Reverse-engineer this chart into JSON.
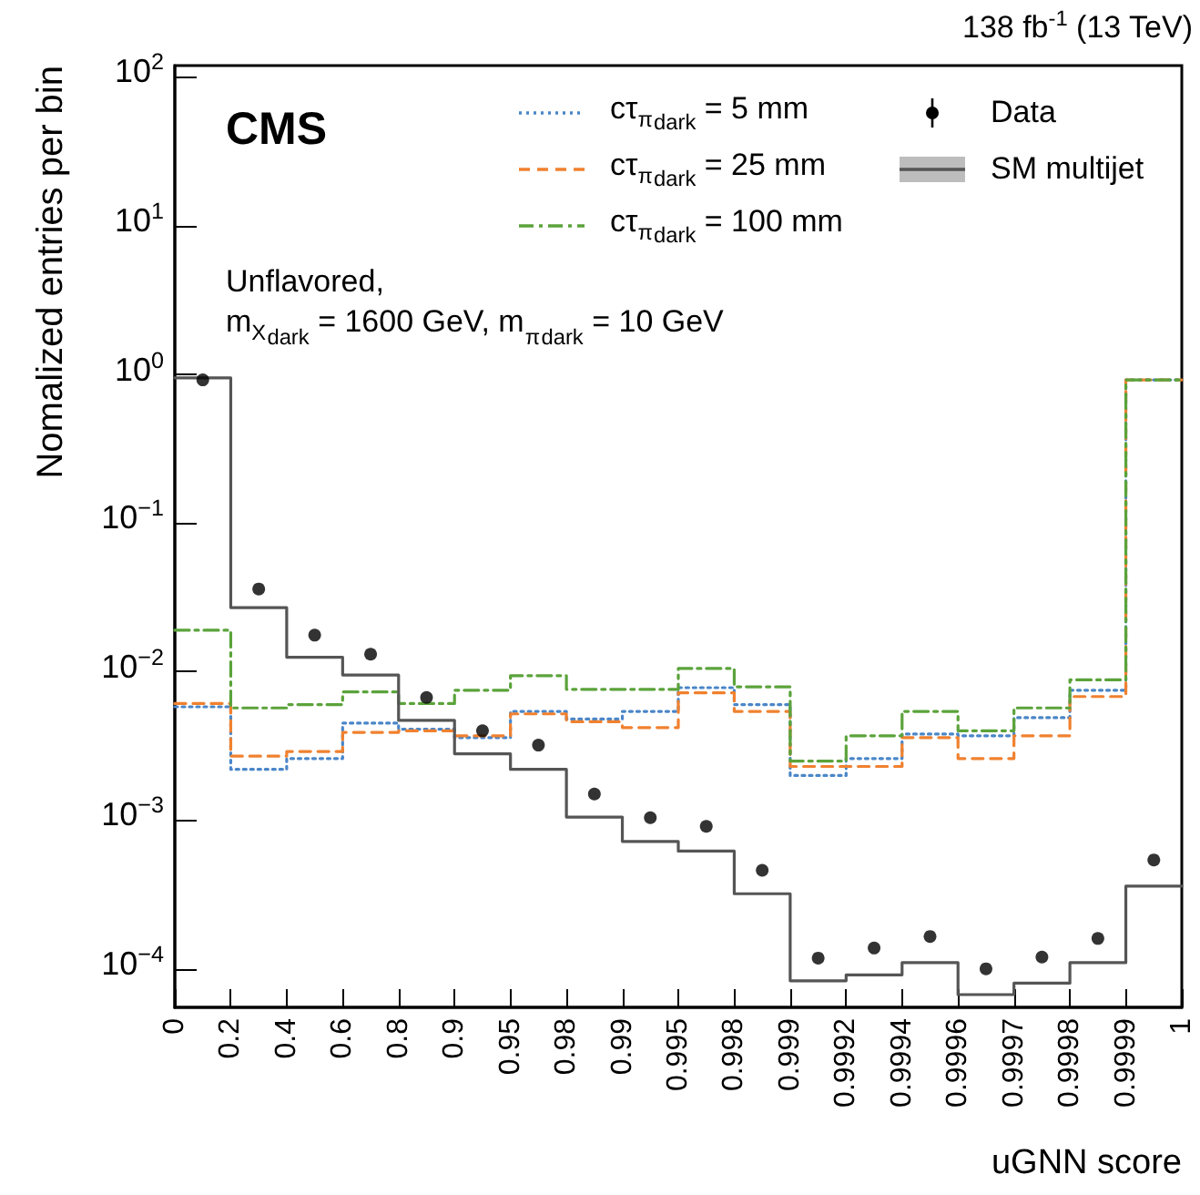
{
  "chart_data": {
    "type": "step",
    "xlabel": "uGNN score",
    "ylabel": "Nomalized entries per bin",
    "annotations": [
      "CMS",
      "138 fb$^{-1}$ (13 TeV)",
      "Unflavored,",
      "m$_{X}$$_{dark}$ = 1600 GeV, m$_{π}$$_{dark}$ = 10 GeV"
    ],
    "categories": [
      "0",
      null,
      "0.2",
      null,
      "0.4",
      null,
      "0.6",
      null,
      "0.8",
      null,
      "0.9",
      null,
      "0.95",
      null,
      "0.98",
      null,
      "0.99",
      null,
      "0.995",
      null,
      "0.998",
      null,
      "0.999",
      null,
      "0.9992",
      null,
      "0.9994",
      null,
      "0.9996",
      null,
      "0.9997",
      null,
      "0.9998",
      null,
      "0.9999",
      null,
      "1"
    ],
    "log": "y",
    "ylim": [
      5.5e-05,
      120
    ],
    "yticks": [
      {
        "value": 0.0001,
        "label": "10$^{−4}$"
      },
      {
        "value": 0.001,
        "label": "10$^{−3}$"
      },
      {
        "value": 0.01,
        "label": "10$^{−2}$"
      },
      {
        "value": 0.1,
        "label": "10$^{−1}$"
      },
      {
        "value": 1,
        "label": "10$^{0}$"
      },
      {
        "value": 10,
        "label": "10$^{1}$"
      },
      {
        "value": 100,
        "label": "10$^{2}$"
      }
    ],
    "legend": "top right",
    "grid": false,
    "series": [
      {
        "name": "cτ$_{π}$$_{dark}$ = 5 mm",
        "color": "#4a86c8",
        "line_style": "dotted",
        "values": [
          0.0058,
          0.0058,
          0.0022,
          0.0022,
          0.0026,
          0.0026,
          0.0045,
          0.0045,
          0.0041,
          0.0041,
          0.0036,
          0.0036,
          0.0054,
          0.0054,
          0.0048,
          0.0048,
          0.0054,
          0.0054,
          0.0078,
          0.0078,
          0.006,
          0.006,
          0.002,
          0.002,
          0.0026,
          0.0026,
          0.0038,
          0.0038,
          0.0037,
          0.0037,
          0.0049,
          0.0049,
          0.0075,
          0.0075,
          0.92,
          0.92,
          0.92
        ]
      },
      {
        "name": "cτ$_{π}$$_{dark}$ = 25 mm",
        "color": "#f0812f",
        "line_style": "dashed",
        "values": [
          0.0061,
          0.0061,
          0.0027,
          0.0027,
          0.0029,
          0.0029,
          0.0039,
          0.0039,
          0.004,
          0.004,
          0.0037,
          0.0037,
          0.0052,
          0.0052,
          0.0046,
          0.0046,
          0.0042,
          0.0042,
          0.0072,
          0.0072,
          0.0054,
          0.0054,
          0.0023,
          0.0023,
          0.0023,
          0.0023,
          0.0036,
          0.0036,
          0.0026,
          0.0026,
          0.0037,
          0.0037,
          0.0068,
          0.0068,
          0.92,
          0.92,
          0.92
        ]
      },
      {
        "name": "cτ$_{π}$$_{dark}$ = 100 mm",
        "color": "#5ba33b",
        "line_style": "dashdot",
        "values": [
          0.019,
          0.019,
          0.0057,
          0.0057,
          0.006,
          0.006,
          0.0073,
          0.0073,
          0.0061,
          0.0061,
          0.0075,
          0.0075,
          0.0094,
          0.0094,
          0.0076,
          0.0076,
          0.0076,
          0.0076,
          0.0105,
          0.0105,
          0.0079,
          0.0079,
          0.0025,
          0.0025,
          0.0037,
          0.0037,
          0.0054,
          0.0054,
          0.004,
          0.004,
          0.0057,
          0.0057,
          0.0088,
          0.0088,
          0.92,
          0.92,
          0.92
        ]
      },
      {
        "name": "Data",
        "type": "scatter",
        "marker": "circle",
        "color": "#000000",
        "values": [
          null,
          0.92,
          null,
          0.036,
          null,
          0.0176,
          null,
          0.0131,
          null,
          0.0067,
          null,
          0.004,
          null,
          0.0032,
          null,
          0.0015,
          null,
          0.00104,
          null,
          0.00091,
          null,
          0.00046,
          null,
          0.000118,
          null,
          0.000138,
          null,
          0.000165,
          null,
          0.0001,
          null,
          0.00012,
          null,
          0.00016,
          null,
          0.00054,
          null
        ]
      },
      {
        "name": "SM multijet",
        "color": "#555555",
        "line_style": "solid",
        "values": [
          0.95,
          0.95,
          0.027,
          0.027,
          0.0125,
          0.0125,
          0.0095,
          0.0095,
          0.0047,
          0.0047,
          0.0028,
          0.0028,
          0.0022,
          0.0022,
          0.00105,
          0.00105,
          0.00072,
          0.00072,
          0.00062,
          0.00062,
          0.00032,
          0.00032,
          8.3e-05,
          8.3e-05,
          9.1e-05,
          9.1e-05,
          0.00011,
          0.00011,
          6.7e-05,
          6.7e-05,
          8e-05,
          8e-05,
          0.00011,
          0.00011,
          0.00036,
          0.00036,
          0.00036
        ]
      }
    ]
  }
}
